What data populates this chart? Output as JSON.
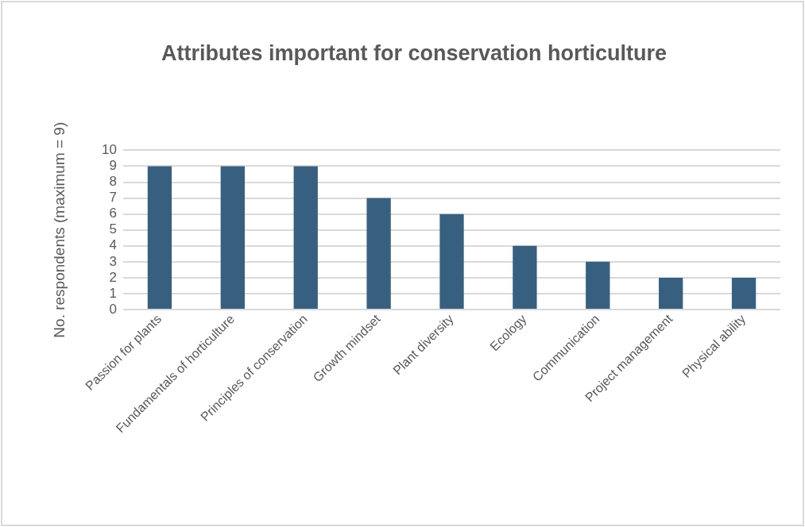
{
  "chart_data": {
    "type": "bar",
    "title": "Attributes important for conservation horticulture",
    "ylabel": "No. respondents (maximum = 9)",
    "categories": [
      "Passion for plants",
      "Fundamentals of horticulture",
      "Principles of conservation",
      "Growth mindset",
      "Plant diversity",
      "Ecology",
      "Communication",
      "Project management",
      "Physical ability"
    ],
    "values": [
      9,
      9,
      9,
      7,
      6,
      4,
      3,
      2,
      2
    ],
    "color": "#376080",
    "ylim": [
      0,
      10
    ],
    "yticks": [
      0,
      1,
      2,
      3,
      4,
      5,
      6,
      7,
      8,
      9,
      10
    ],
    "grid": "y",
    "legend": false
  }
}
